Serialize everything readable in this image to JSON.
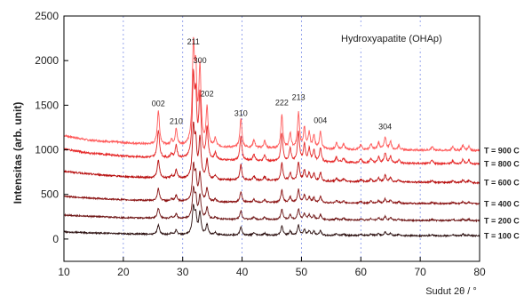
{
  "chart_data": {
    "type": "line",
    "title": "Hydroxyapatite (OHAp)",
    "xlabel": "Sudut 2θ / °",
    "ylabel": "Intensitas (arb. unit)",
    "xlim": [
      10,
      80
    ],
    "ylim": [
      -250,
      2500
    ],
    "x_ticks": [
      10,
      20,
      30,
      40,
      50,
      60,
      70,
      80
    ],
    "y_ticks": [
      0,
      500,
      1000,
      1500,
      2000,
      2500
    ],
    "grid": "vertical-dashed",
    "peak_labels": [
      {
        "label": "002",
        "x": 25.9,
        "y": 1490
      },
      {
        "label": "210",
        "x": 28.9,
        "y": 1290
      },
      {
        "label": "211",
        "x": 31.8,
        "y": 2180
      },
      {
        "label": "300",
        "x": 32.9,
        "y": 1970
      },
      {
        "label": "202",
        "x": 34.1,
        "y": 1600
      },
      {
        "label": "310",
        "x": 39.8,
        "y": 1380
      },
      {
        "label": "222",
        "x": 46.7,
        "y": 1500
      },
      {
        "label": "213",
        "x": 49.5,
        "y": 1560
      },
      {
        "label": "004",
        "x": 53.2,
        "y": 1300
      },
      {
        "label": "304",
        "x": 64.1,
        "y": 1230
      }
    ],
    "series": [
      {
        "name": "T = 900 C",
        "color": "#ff5a5a",
        "baseline": [
          [
            10,
            1160
          ],
          [
            14,
            1110
          ],
          [
            20,
            1080
          ],
          [
            27,
            1050
          ],
          [
            35,
            1030
          ],
          [
            45,
            1015
          ],
          [
            55,
            1005
          ],
          [
            65,
            1000
          ],
          [
            80,
            990
          ]
        ],
        "scale": 1.0
      },
      {
        "name": "T = 800 C",
        "color": "#e62a2a",
        "baseline": [
          [
            10,
            1010
          ],
          [
            14,
            965
          ],
          [
            20,
            930
          ],
          [
            27,
            905
          ],
          [
            35,
            885
          ],
          [
            45,
            870
          ],
          [
            55,
            860
          ],
          [
            65,
            850
          ],
          [
            80,
            840
          ]
        ],
        "scale": 0.82
      },
      {
        "name": "T = 600 C",
        "color": "#b81010",
        "baseline": [
          [
            10,
            760
          ],
          [
            14,
            730
          ],
          [
            20,
            700
          ],
          [
            27,
            680
          ],
          [
            35,
            665
          ],
          [
            45,
            655
          ],
          [
            55,
            645
          ],
          [
            65,
            640
          ],
          [
            80,
            630
          ]
        ],
        "scale": 0.52
      },
      {
        "name": "T = 400 C",
        "color": "#8a1212",
        "baseline": [
          [
            10,
            480
          ],
          [
            14,
            460
          ],
          [
            20,
            440
          ],
          [
            27,
            425
          ],
          [
            35,
            415
          ],
          [
            45,
            410
          ],
          [
            55,
            405
          ],
          [
            65,
            400
          ],
          [
            80,
            395
          ]
        ],
        "scale": 0.36
      },
      {
        "name": "T = 200 C",
        "color": "#6e1616",
        "baseline": [
          [
            10,
            270
          ],
          [
            14,
            255
          ],
          [
            20,
            240
          ],
          [
            27,
            230
          ],
          [
            35,
            222
          ],
          [
            45,
            218
          ],
          [
            55,
            214
          ],
          [
            65,
            210
          ],
          [
            80,
            205
          ]
        ],
        "scale": 0.3
      },
      {
        "name": "T = 100 C",
        "color": "#2a0e0e",
        "baseline": [
          [
            10,
            80
          ],
          [
            14,
            70
          ],
          [
            20,
            60
          ],
          [
            27,
            50
          ],
          [
            35,
            45
          ],
          [
            45,
            42
          ],
          [
            55,
            40
          ],
          [
            65,
            38
          ],
          [
            80,
            35
          ]
        ],
        "scale": 0.28
      }
    ],
    "peaks": [
      {
        "x": 25.9,
        "h": 380,
        "w": 0.22
      },
      {
        "x": 28.1,
        "h": 60,
        "w": 0.2
      },
      {
        "x": 28.9,
        "h": 180,
        "w": 0.2
      },
      {
        "x": 31.8,
        "h": 1050,
        "w": 0.22
      },
      {
        "x": 32.2,
        "h": 700,
        "w": 0.2
      },
      {
        "x": 32.9,
        "h": 850,
        "w": 0.22
      },
      {
        "x": 34.1,
        "h": 420,
        "w": 0.2
      },
      {
        "x": 35.5,
        "h": 90,
        "w": 0.2
      },
      {
        "x": 39.8,
        "h": 330,
        "w": 0.2
      },
      {
        "x": 42.0,
        "h": 90,
        "w": 0.2
      },
      {
        "x": 43.8,
        "h": 80,
        "w": 0.2
      },
      {
        "x": 46.7,
        "h": 380,
        "w": 0.2
      },
      {
        "x": 48.1,
        "h": 170,
        "w": 0.2
      },
      {
        "x": 49.5,
        "h": 400,
        "w": 0.2
      },
      {
        "x": 50.5,
        "h": 230,
        "w": 0.2
      },
      {
        "x": 51.3,
        "h": 170,
        "w": 0.2
      },
      {
        "x": 52.1,
        "h": 150,
        "w": 0.2
      },
      {
        "x": 53.2,
        "h": 190,
        "w": 0.2
      },
      {
        "x": 55.9,
        "h": 70,
        "w": 0.2
      },
      {
        "x": 57.1,
        "h": 60,
        "w": 0.2
      },
      {
        "x": 60.0,
        "h": 50,
        "w": 0.2
      },
      {
        "x": 61.7,
        "h": 60,
        "w": 0.2
      },
      {
        "x": 63.0,
        "h": 80,
        "w": 0.2
      },
      {
        "x": 64.1,
        "h": 140,
        "w": 0.2
      },
      {
        "x": 65.0,
        "h": 90,
        "w": 0.2
      },
      {
        "x": 66.4,
        "h": 50,
        "w": 0.2
      },
      {
        "x": 72.0,
        "h": 40,
        "w": 0.2
      },
      {
        "x": 75.5,
        "h": 40,
        "w": 0.2
      },
      {
        "x": 77.2,
        "h": 60,
        "w": 0.2
      },
      {
        "x": 78.2,
        "h": 50,
        "w": 0.2
      }
    ]
  }
}
